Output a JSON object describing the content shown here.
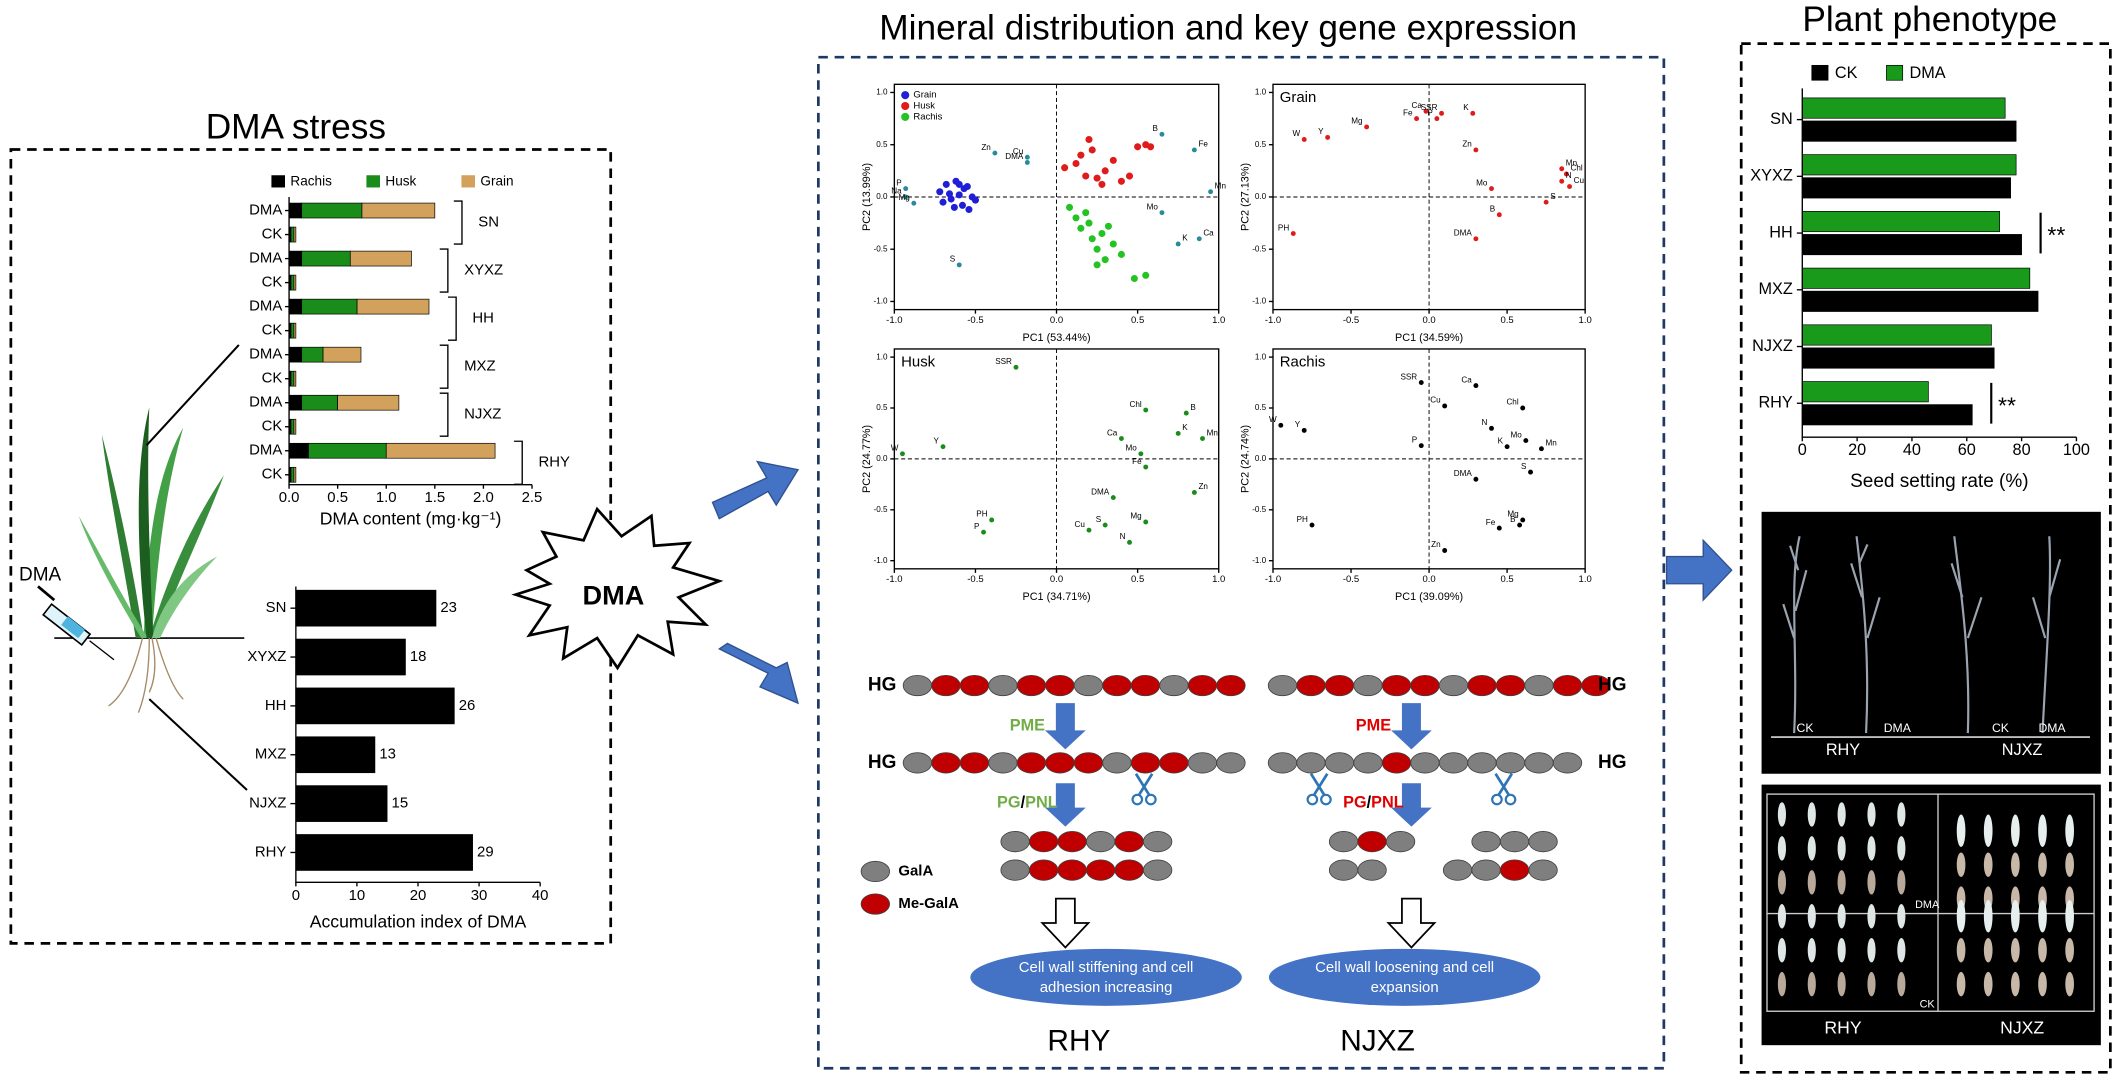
{
  "sections": {
    "stress": "DMA stress",
    "mineral": "Mineral distribution and key gene expression",
    "phenotype": "Plant phenotype"
  },
  "syringe_label": "DMA",
  "burst_label": "DMA",
  "chart_data": [
    {
      "type": "stacked_barh",
      "categories": [
        "DMA",
        "CK",
        "DMA",
        "CK",
        "DMA",
        "CK",
        "DMA",
        "CK",
        "DMA",
        "CK",
        "DMA",
        "CK"
      ],
      "groups": [
        "SN",
        "XYXZ",
        "HH",
        "MXZ",
        "NJXZ",
        "RHY"
      ],
      "series": [
        {
          "name": "Rachis",
          "color": "#000000",
          "values": [
            0.13,
            0.02,
            0.13,
            0.02,
            0.13,
            0.02,
            0.13,
            0.02,
            0.13,
            0.02,
            0.2,
            0.02
          ]
        },
        {
          "name": "Husk",
          "color": "#1a8c1a",
          "values": [
            0.62,
            0.03,
            0.5,
            0.03,
            0.57,
            0.03,
            0.22,
            0.03,
            0.37,
            0.03,
            0.8,
            0.03
          ]
        },
        {
          "name": "Grain",
          "color": "#d2a15c",
          "values": [
            0.75,
            0.02,
            0.63,
            0.02,
            0.74,
            0.02,
            0.39,
            0.02,
            0.63,
            0.02,
            1.12,
            0.02
          ]
        }
      ],
      "xlim": [
        0,
        2.5
      ],
      "xticks": [
        {
          "value": 0,
          "label": "0.0"
        },
        0.5,
        {
          "value": 1,
          "label": "1.0"
        },
        1.5,
        {
          "value": 2,
          "label": "2.0"
        },
        2.5
      ],
      "xlabel": "DMA content (mg·kg⁻¹)"
    },
    {
      "type": "barh",
      "categories": [
        "SN",
        "XYXZ",
        "HH",
        "MXZ",
        "NJXZ",
        "RHY"
      ],
      "values": [
        23,
        18,
        26,
        13,
        15,
        29
      ],
      "color": "#000000",
      "xlim": [
        0,
        40
      ],
      "xticks": [
        0,
        10,
        20,
        30,
        40
      ],
      "xlabel": "Accumulation index of DMA"
    },
    {
      "type": "scatter",
      "series": [
        {
          "name": "Grain",
          "color": "#1f1fd8",
          "x": [
            -0.72,
            -0.68,
            -0.65,
            -0.62,
            -0.6,
            -0.58,
            -0.55,
            -0.52,
            -0.7,
            -0.63,
            -0.57,
            -0.5,
            -0.66,
            -0.6,
            -0.54
          ],
          "values": [
            0.05,
            0.12,
            -0.02,
            0.15,
            0.02,
            -0.08,
            0.1,
            0.0,
            -0.05,
            -0.1,
            0.08,
            -0.03,
            0.03,
            0.12,
            -0.12
          ]
        },
        {
          "name": "Husk",
          "color": "#e01b1b",
          "x": [
            0.05,
            0.12,
            0.18,
            0.22,
            0.25,
            0.3,
            0.35,
            0.4,
            0.45,
            0.5,
            0.55,
            0.58,
            0.2,
            0.28,
            0.15
          ],
          "values": [
            0.28,
            0.32,
            0.2,
            0.45,
            0.18,
            0.25,
            0.35,
            0.15,
            0.2,
            0.48,
            0.5,
            0.48,
            0.55,
            0.12,
            0.4
          ]
        },
        {
          "name": "Rachis",
          "color": "#22c322",
          "x": [
            0.08,
            0.12,
            0.15,
            0.2,
            0.22,
            0.25,
            0.28,
            0.3,
            0.35,
            0.4,
            0.48,
            0.55,
            0.18,
            0.32,
            0.25
          ],
          "values": [
            -0.1,
            -0.2,
            -0.3,
            -0.25,
            -0.4,
            -0.5,
            -0.35,
            -0.6,
            -0.45,
            -0.55,
            -0.78,
            -0.75,
            -0.15,
            -0.28,
            -0.65
          ]
        }
      ],
      "loadings": {
        "color": "#2a8a9a",
        "labels": [
          "Zn",
          "Cu",
          "DMA",
          "P",
          "Na",
          "Mg",
          "S",
          "B",
          "Fe",
          "Mn",
          "Mo",
          "K",
          "Ca"
        ],
        "x": [
          -0.38,
          -0.18,
          -0.18,
          -0.93,
          -0.93,
          -0.88,
          -0.6,
          0.65,
          0.85,
          0.95,
          0.65,
          0.75,
          0.88
        ],
        "values": [
          0.42,
          0.38,
          0.33,
          0.08,
          0.0,
          -0.06,
          -0.65,
          0.6,
          0.45,
          0.05,
          -0.15,
          -0.45,
          -0.4
        ]
      },
      "legend": "top-left",
      "xlim": [
        -1,
        1
      ],
      "ylim": [
        -1,
        1
      ],
      "xticks": [
        {
          "value": -1,
          "label": "-1.0"
        },
        -0.5,
        {
          "value": 0,
          "label": "0.0"
        },
        0.5,
        {
          "value": 1,
          "label": "1.0"
        }
      ],
      "yticks": [
        {
          "value": -1,
          "label": "-1.0"
        },
        -0.5,
        {
          "value": 0,
          "label": "0.0"
        },
        0.5,
        {
          "value": 1,
          "label": "1.0"
        }
      ],
      "xlabel": "PC1 (53.44%)",
      "ylabel": "PC2 (13.99%)"
    },
    {
      "type": "scatter",
      "title": "Grain",
      "color": "#e01b1b",
      "labels": [
        "Ca",
        "SSR",
        "K",
        "Fe",
        "P",
        "Mg",
        "W",
        "Y",
        "Zn",
        "Mn",
        "Chl",
        "N",
        "Cu",
        "Mo",
        "S",
        "B",
        "PH",
        "DMA"
      ],
      "x": [
        -0.02,
        0.08,
        0.28,
        -0.08,
        0.05,
        -0.4,
        -0.8,
        -0.65,
        0.3,
        0.85,
        0.88,
        0.85,
        0.9,
        0.4,
        0.75,
        0.45,
        -0.87,
        0.3
      ],
      "values": [
        0.82,
        0.8,
        0.8,
        0.75,
        0.75,
        0.67,
        0.55,
        0.57,
        0.45,
        0.27,
        0.22,
        0.15,
        0.1,
        0.08,
        -0.05,
        -0.17,
        -0.35,
        -0.4
      ],
      "xlim": [
        -1,
        1
      ],
      "ylim": [
        -1,
        1
      ],
      "xticks": [
        {
          "value": -1,
          "label": "-1.0"
        },
        -0.5,
        {
          "value": 0,
          "label": "0.0"
        },
        0.5,
        {
          "value": 1,
          "label": "1.0"
        }
      ],
      "yticks": [
        {
          "value": -1,
          "label": "-1.0"
        },
        -0.5,
        {
          "value": 0,
          "label": "0.0"
        },
        0.5,
        {
          "value": 1,
          "label": "1.0"
        }
      ],
      "xlabel": "PC1 (34.59%)",
      "ylabel": "PC2 (27.13%)"
    },
    {
      "type": "scatter",
      "title": "Husk",
      "color": "#1a8c1a",
      "labels": [
        "SSR",
        "W",
        "Y",
        "Chl",
        "B",
        "K",
        "Mn",
        "Ca",
        "Mo",
        "Fe",
        "DMA",
        "Zn",
        "PH",
        "P",
        "S",
        "Cu",
        "Mg",
        "N"
      ],
      "x": [
        -0.25,
        -0.95,
        -0.7,
        0.55,
        0.8,
        0.75,
        0.9,
        0.4,
        0.52,
        0.55,
        0.35,
        0.85,
        -0.4,
        -0.45,
        0.3,
        0.2,
        0.55,
        0.45
      ],
      "values": [
        0.9,
        0.05,
        0.12,
        0.48,
        0.45,
        0.25,
        0.2,
        0.2,
        0.05,
        -0.08,
        -0.38,
        -0.33,
        -0.6,
        -0.72,
        -0.65,
        -0.7,
        -0.62,
        -0.82
      ],
      "xlim": [
        -1,
        1
      ],
      "ylim": [
        -1,
        1
      ],
      "xticks": [
        {
          "value": -1,
          "label": "-1.0"
        },
        -0.5,
        {
          "value": 0,
          "label": "0.0"
        },
        0.5,
        {
          "value": 1,
          "label": "1.0"
        }
      ],
      "yticks": [
        {
          "value": -1,
          "label": "-1.0"
        },
        -0.5,
        {
          "value": 0,
          "label": "0.0"
        },
        0.5,
        {
          "value": 1,
          "label": "1.0"
        }
      ],
      "xlabel": "PC1 (34.71%)",
      "ylabel": "PC2 (24.77%)"
    },
    {
      "type": "scatter",
      "title": "Rachis",
      "color": "#000000",
      "labels": [
        "SSR",
        "Ca",
        "Chl",
        "Cu",
        "W",
        "Y",
        "N",
        "Mo",
        "K",
        "Mn",
        "P",
        "DMA",
        "S",
        "PH",
        "Mg",
        "B",
        "Fe",
        "Zn"
      ],
      "x": [
        -0.05,
        0.3,
        0.6,
        0.1,
        -0.95,
        -0.8,
        0.4,
        0.62,
        0.5,
        0.72,
        -0.05,
        0.3,
        0.65,
        -0.75,
        0.6,
        0.58,
        0.45,
        0.1
      ],
      "values": [
        0.75,
        0.72,
        0.5,
        0.52,
        0.33,
        0.28,
        0.3,
        0.18,
        0.12,
        0.1,
        0.13,
        -0.2,
        -0.13,
        -0.65,
        -0.6,
        -0.65,
        -0.68,
        -0.9
      ],
      "xlim": [
        -1,
        1
      ],
      "ylim": [
        -1,
        1
      ],
      "xticks": [
        {
          "value": -1,
          "label": "-1.0"
        },
        -0.5,
        {
          "value": 0,
          "label": "0.0"
        },
        0.5,
        {
          "value": 1,
          "label": "1.0"
        }
      ],
      "yticks": [
        {
          "value": -1,
          "label": "-1.0"
        },
        -0.5,
        {
          "value": 0,
          "label": "0.0"
        },
        0.5,
        {
          "value": 1,
          "label": "1.0"
        }
      ],
      "xlabel": "PC1 (39.09%)",
      "ylabel": "PC2 (24.74%)"
    },
    {
      "type": "grouped_barh",
      "categories": [
        "SN",
        "XYXZ",
        "HH",
        "MXZ",
        "NJXZ",
        "RHY"
      ],
      "series": [
        {
          "name": "CK",
          "color": "#000000",
          "values": [
            78,
            76,
            80,
            86,
            70,
            62
          ]
        },
        {
          "name": "DMA",
          "color": "#1a9a1a",
          "values": [
            74,
            78,
            72,
            83,
            69,
            46
          ]
        }
      ],
      "legend": "top",
      "xlim": [
        0,
        100
      ],
      "xticks": [
        0,
        20,
        40,
        60,
        80,
        100
      ],
      "xlabel": "Seed setting rate (%)",
      "annotations": [
        {
          "text": "**",
          "category": "HH"
        },
        {
          "text": "**",
          "category": "RHY"
        }
      ]
    }
  ],
  "pectin": {
    "hg": "HG",
    "pme": "PME",
    "pg": "PG",
    "slash": "/",
    "pnl": "PNL",
    "legend": [
      "GalA",
      "Me-GalA"
    ],
    "outcomes": [
      [
        "Cell wall stiffening and cell",
        "adhesion increasing"
      ],
      [
        "Cell wall loosening and cell",
        "expansion"
      ]
    ],
    "cultivars": [
      "RHY",
      "NJXZ"
    ]
  },
  "photos": {
    "top": {
      "labels": [
        "CK",
        "DMA",
        "CK",
        "DMA"
      ],
      "cultivars": [
        "RHY",
        "NJXZ"
      ]
    },
    "bottom": {
      "treatments": [
        "DMA",
        "CK"
      ],
      "cultivars": [
        "RHY",
        "NJXZ"
      ]
    }
  }
}
